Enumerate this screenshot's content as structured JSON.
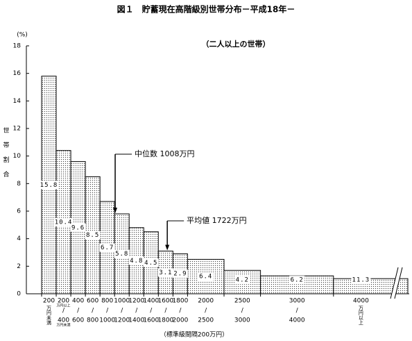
{
  "chart_data": {
    "type": "histogram",
    "title": "図１　貯蓄現在高階級別世帯分布－平成18年－",
    "subtitle": "（二人以上の世帯）",
    "y_unit": "(%)",
    "y_label": "世帯割合",
    "x_label": "（標準級間隔200万円）",
    "ylim": [
      0,
      18
    ],
    "yticks": [
      0,
      2,
      4,
      6,
      8,
      10,
      12,
      14,
      16,
      18
    ],
    "lower_edges": [
      0,
      200,
      400,
      600,
      800,
      1000,
      1200,
      1400,
      1600,
      1800,
      2000,
      2500,
      3000,
      4000
    ],
    "categories": [
      "200",
      "200",
      "400",
      "600",
      "800",
      "1000",
      "1200",
      "1400",
      "1600",
      "1800",
      "2000",
      "2500",
      "3000",
      "4000"
    ],
    "categories_to": [
      null,
      "400",
      "600",
      "800",
      "1000",
      "1200",
      "1400",
      "1600",
      "1800",
      "2000",
      "2500",
      "3000",
      "4000",
      null
    ],
    "below_note": "万円未満",
    "above_note": "万円以上",
    "values": [
      15.8,
      10.4,
      9.6,
      8.5,
      6.7,
      5.8,
      4.8,
      4.5,
      3.1,
      2.9,
      6.4,
      4.2,
      6.2,
      11.3
    ],
    "heights": [
      15.8,
      10.4,
      9.6,
      8.5,
      6.7,
      5.8,
      4.8,
      4.5,
      3.1,
      2.9,
      2.5,
      1.7,
      1.3,
      1.1
    ],
    "annotations": [
      {
        "text": "中位数 1008万円",
        "x": 1008
      },
      {
        "text": "平均値 1722万円",
        "x": 1722
      }
    ]
  }
}
